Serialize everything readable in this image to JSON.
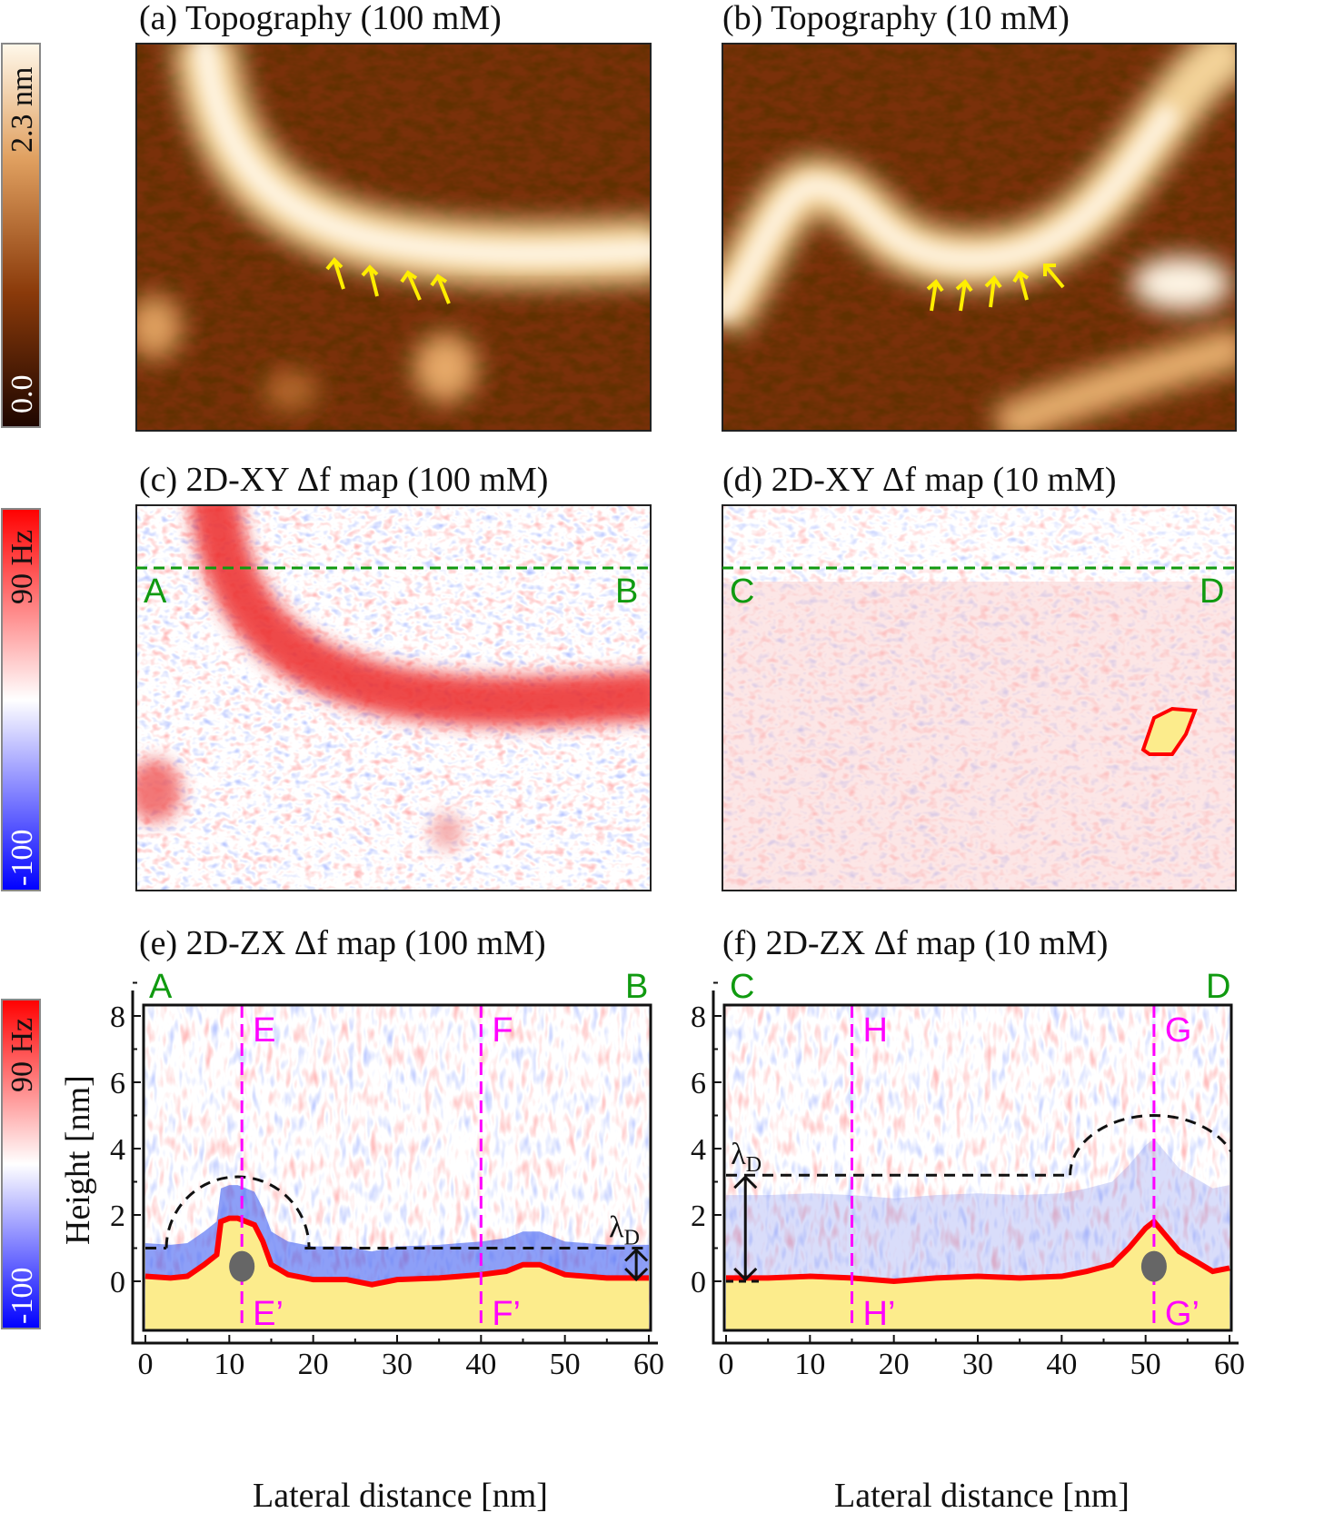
{
  "colorbars": [
    {
      "max_label": "2.3 nm",
      "min_label": "0.0",
      "colors": [
        "#2a0a02",
        "#8a3a0a",
        "#e0a060",
        "#fff4e0"
      ]
    },
    {
      "max_label": "90 Hz",
      "min_label": "-100",
      "colors": [
        "#ff0000",
        "#ffffff",
        "#0000ff"
      ]
    },
    {
      "max_label": "90 Hz",
      "min_label": "-100",
      "colors": [
        "#ff0000",
        "#ffffff",
        "#0000ff"
      ]
    }
  ],
  "colors": {
    "points_green": "#109a10",
    "magenta": "#ff00ff",
    "surface": "#fcec8c",
    "arrow_yellow": "#ffee00",
    "surface_edge": "#ff0000"
  },
  "chart_data": [
    {
      "type": "heatmap",
      "panel": "a",
      "title": "(a) Topography (100 mM)",
      "colorbar": [
        0.0,
        2.3
      ],
      "unit": "nm",
      "arrows": 4
    },
    {
      "type": "heatmap",
      "panel": "b",
      "title": "(b) Topography (10 mM)",
      "colorbar": [
        0.0,
        2.3
      ],
      "unit": "nm",
      "arrows": 5
    },
    {
      "type": "heatmap",
      "panel": "c",
      "title": "(c) 2D-XY Δf map (100 mM)",
      "colorbar": [
        -100,
        90
      ],
      "unit": "Hz",
      "line_labels": [
        "A",
        "B"
      ]
    },
    {
      "type": "heatmap",
      "panel": "d",
      "title": "(d) 2D-XY Δf map (10 mM)",
      "colorbar": [
        -100,
        90
      ],
      "unit": "Hz",
      "line_labels": [
        "C",
        "D"
      ]
    },
    {
      "type": "heatmap",
      "panel": "e",
      "title": "(e) 2D-ZX Δf map (100 mM)",
      "xlabel": "Lateral distance [nm]",
      "ylabel": "Height [nm]",
      "xlim": [
        0,
        60
      ],
      "ylim": [
        -1.5,
        8.3
      ],
      "xticks": [
        "0",
        "10",
        "20",
        "30",
        "40",
        "50",
        "60"
      ],
      "yticks": [
        "0",
        "2",
        "4",
        "6",
        "8"
      ],
      "end_labels": [
        "A",
        "B"
      ],
      "vertical_lines": [
        {
          "x": 11.5,
          "top": "E",
          "bottom": "E’"
        },
        {
          "x": 40,
          "top": "F",
          "bottom": "F’"
        }
      ],
      "surface_profile": {
        "x": [
          0,
          3,
          5,
          7,
          8.5,
          9,
          10,
          11,
          12,
          13,
          14,
          15,
          17,
          20,
          24,
          27,
          30,
          35,
          40,
          43,
          45,
          47,
          48,
          50,
          55,
          60
        ],
        "y": [
          0.15,
          0.1,
          0.15,
          0.5,
          0.8,
          1.8,
          1.9,
          1.9,
          1.8,
          1.7,
          1.2,
          0.5,
          0.2,
          0.05,
          0.05,
          -0.1,
          0.05,
          0.1,
          0.2,
          0.3,
          0.5,
          0.5,
          0.4,
          0.2,
          0.1,
          0.1
        ]
      },
      "debye_level": 1.0,
      "debye_dome": {
        "center_x": 11,
        "peak": 3.15,
        "from_x": 2.5,
        "to_x": 19
      },
      "lambda_label": "λ",
      "lambda_sub": "D",
      "lambda_arrow_x": 58.5,
      "molecule_marker": {
        "x": 11.5,
        "y": 0.45
      }
    },
    {
      "type": "heatmap",
      "panel": "f",
      "title": "(f) 2D-ZX Δf map (10 mM)",
      "xlabel": "Lateral distance [nm]",
      "ylabel": "",
      "xlim": [
        0,
        60
      ],
      "ylim": [
        -1.5,
        8.3
      ],
      "xticks": [
        "0",
        "10",
        "20",
        "30",
        "40",
        "50",
        "60"
      ],
      "yticks": [
        "0",
        "2",
        "4",
        "6",
        "8"
      ],
      "end_labels": [
        "C",
        "D"
      ],
      "vertical_lines": [
        {
          "x": 15,
          "top": "H",
          "bottom": "H’"
        },
        {
          "x": 51,
          "top": "G",
          "bottom": "G’"
        }
      ],
      "surface_profile": {
        "x": [
          0,
          5,
          10,
          15,
          20,
          25,
          30,
          35,
          40,
          43,
          46,
          48,
          50,
          51,
          52,
          54,
          56,
          58,
          60
        ],
        "y": [
          0.1,
          0.1,
          0.15,
          0.1,
          0.0,
          0.1,
          0.15,
          0.1,
          0.15,
          0.3,
          0.5,
          1.0,
          1.6,
          1.8,
          1.5,
          0.9,
          0.6,
          0.3,
          0.4
        ]
      },
      "debye_level": 3.2,
      "debye_dome": {
        "center_x": 51,
        "peak": 5.0,
        "from_x": 41,
        "to_x": 60
      },
      "lambda_label": "λ",
      "lambda_sub": "D",
      "lambda_arrow_x": 2.3,
      "molecule_marker": {
        "x": 51,
        "y": 0.45
      }
    }
  ]
}
